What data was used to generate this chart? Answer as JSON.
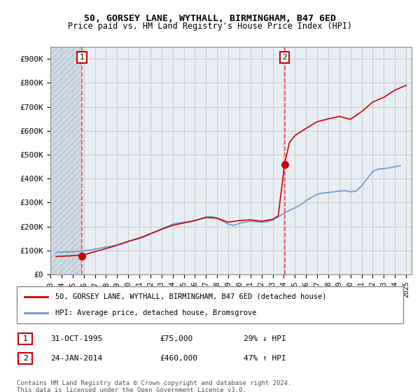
{
  "title1": "50, GORSEY LANE, WYTHALL, BIRMINGHAM, B47 6ED",
  "title2": "Price paid vs. HM Land Registry's House Price Index (HPI)",
  "ylabel_ticks": [
    "£0",
    "£100K",
    "£200K",
    "£300K",
    "£400K",
    "£500K",
    "£600K",
    "£700K",
    "£800K",
    "£900K"
  ],
  "ytick_values": [
    0,
    100000,
    200000,
    300000,
    400000,
    500000,
    600000,
    700000,
    800000,
    900000
  ],
  "ylim": [
    0,
    950000
  ],
  "xlim_start": 1993.0,
  "xlim_end": 2025.5,
  "xticks": [
    1993,
    1994,
    1995,
    1996,
    1997,
    1998,
    1999,
    2000,
    2001,
    2002,
    2003,
    2004,
    2005,
    2006,
    2007,
    2008,
    2009,
    2010,
    2011,
    2012,
    2013,
    2014,
    2015,
    2016,
    2017,
    2018,
    2019,
    2020,
    2021,
    2022,
    2023,
    2024,
    2025
  ],
  "sale1_x": 1995.833,
  "sale1_y": 75000,
  "sale1_label": "1",
  "sale1_date": "31-OCT-1995",
  "sale1_price": "£75,000",
  "sale1_hpi": "29% ↓ HPI",
  "sale2_x": 2014.07,
  "sale2_y": 460000,
  "sale2_label": "2",
  "sale2_date": "24-JAN-2014",
  "sale2_price": "£460,000",
  "sale2_hpi": "47% ↑ HPI",
  "legend_line1": "50, GORSEY LANE, WYTHALL, BIRMINGHAM, B47 6ED (detached house)",
  "legend_line2": "HPI: Average price, detached house, Bromsgrove",
  "footer1": "Contains HM Land Registry data © Crown copyright and database right 2024.",
  "footer2": "This data is licensed under the Open Government Licence v3.0.",
  "hpi_color": "#6699cc",
  "price_color": "#cc0000",
  "bg_hatch_color": "#d0d8e8",
  "grid_color": "#cccccc",
  "sale_vline_color": "#ff4444",
  "box_color": "#cc0000",
  "hpi_data_x": [
    1993.5,
    1994.0,
    1994.5,
    1995.0,
    1995.5,
    1996.0,
    1996.5,
    1997.0,
    1997.5,
    1998.0,
    1998.5,
    1999.0,
    1999.5,
    2000.0,
    2000.5,
    2001.0,
    2001.5,
    2002.0,
    2002.5,
    2003.0,
    2003.5,
    2004.0,
    2004.5,
    2005.0,
    2005.5,
    2006.0,
    2006.5,
    2007.0,
    2007.5,
    2008.0,
    2008.5,
    2009.0,
    2009.5,
    2010.0,
    2010.5,
    2011.0,
    2011.5,
    2012.0,
    2012.5,
    2013.0,
    2013.5,
    2014.0,
    2014.5,
    2015.0,
    2015.5,
    2016.0,
    2016.5,
    2017.0,
    2017.5,
    2018.0,
    2018.5,
    2019.0,
    2019.5,
    2020.0,
    2020.5,
    2021.0,
    2021.5,
    2022.0,
    2022.5,
    2023.0,
    2023.5,
    2024.0,
    2024.5
  ],
  "hpi_data_y": [
    92000,
    93000,
    94000,
    95000,
    96000,
    98000,
    101000,
    105000,
    110000,
    114000,
    118000,
    123000,
    130000,
    137000,
    144000,
    150000,
    158000,
    168000,
    180000,
    190000,
    200000,
    210000,
    215000,
    218000,
    220000,
    225000,
    232000,
    240000,
    242000,
    235000,
    222000,
    210000,
    205000,
    213000,
    218000,
    222000,
    220000,
    218000,
    220000,
    228000,
    240000,
    255000,
    268000,
    278000,
    290000,
    308000,
    322000,
    335000,
    340000,
    342000,
    345000,
    348000,
    350000,
    345000,
    348000,
    370000,
    400000,
    430000,
    440000,
    442000,
    445000,
    450000,
    455000
  ],
  "price_data_x": [
    1993.5,
    1994.0,
    1994.5,
    1995.0,
    1995.5,
    1995.83,
    1996.0,
    1997.0,
    1998.0,
    1999.0,
    2000.0,
    2001.0,
    2002.0,
    2003.0,
    2004.0,
    2005.0,
    2006.0,
    2007.0,
    2008.0,
    2009.0,
    2010.0,
    2011.0,
    2012.0,
    2013.0,
    2013.5,
    2014.07,
    2014.5,
    2015.0,
    2016.0,
    2017.0,
    2018.0,
    2019.0,
    2020.0,
    2021.0,
    2022.0,
    2023.0,
    2023.5,
    2024.0,
    2024.5,
    2025.0
  ],
  "price_data_y": [
    75000,
    76000,
    77000,
    78000,
    80000,
    75000,
    82000,
    95000,
    108000,
    122000,
    138000,
    152000,
    170000,
    188000,
    205000,
    215000,
    225000,
    238000,
    235000,
    218000,
    225000,
    228000,
    222000,
    230000,
    245000,
    460000,
    550000,
    580000,
    610000,
    638000,
    650000,
    660000,
    648000,
    680000,
    720000,
    740000,
    755000,
    770000,
    780000,
    790000
  ],
  "hatch_end_x": 1995.83
}
